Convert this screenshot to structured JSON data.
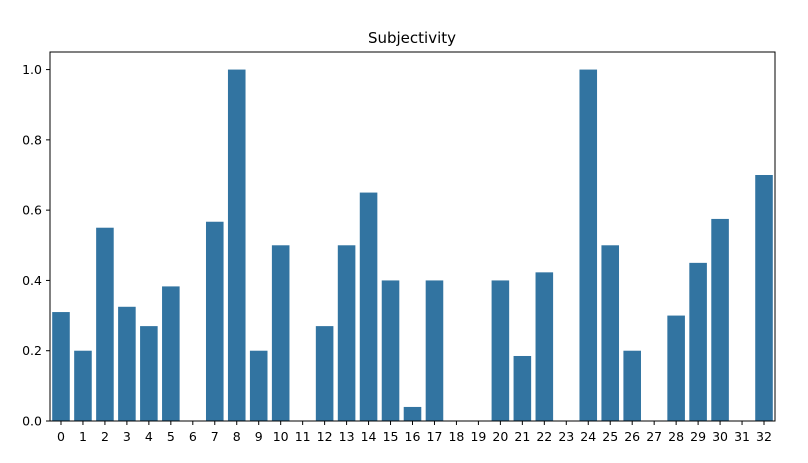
{
  "chart_data": {
    "type": "bar",
    "title": "Subjectivity",
    "xlabel": "",
    "ylabel": "",
    "categories": [
      "0",
      "1",
      "2",
      "3",
      "4",
      "5",
      "6",
      "7",
      "8",
      "9",
      "10",
      "11",
      "12",
      "13",
      "14",
      "15",
      "16",
      "17",
      "18",
      "19",
      "20",
      "21",
      "22",
      "23",
      "24",
      "25",
      "26",
      "27",
      "28",
      "29",
      "30",
      "31",
      "32"
    ],
    "values": [
      0.31,
      0.2,
      0.55,
      0.325,
      0.27,
      0.383,
      0.0,
      0.567,
      1.0,
      0.2,
      0.5,
      0.0,
      0.27,
      0.5,
      0.65,
      0.4,
      0.04,
      0.4,
      0.0,
      0.0,
      0.4,
      0.185,
      0.423,
      0.0,
      1.0,
      0.5,
      0.2,
      0.0,
      0.3,
      0.45,
      0.575,
      0.0,
      0.7
    ],
    "ylim": [
      0,
      1.05
    ],
    "yticks": [
      "0.0",
      "0.2",
      "0.4",
      "0.6",
      "0.8",
      "1.0"
    ],
    "grid": false,
    "bar_color": "#3274a1"
  }
}
